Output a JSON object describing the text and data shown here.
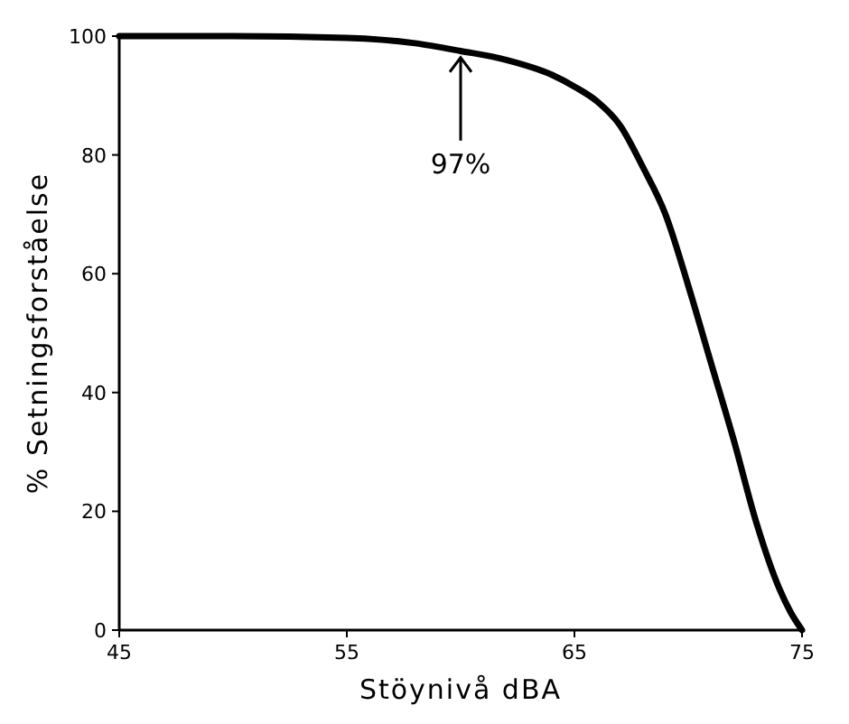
{
  "chart_data": {
    "type": "line",
    "xlabel": "Stöynivå dBA",
    "ylabel": "% Setningsforståelse",
    "x": [
      45,
      50,
      55,
      58,
      60,
      62,
      64,
      65,
      66,
      67,
      68,
      69,
      70,
      71,
      72,
      73,
      74,
      74.5,
      75
    ],
    "series": [
      {
        "color": "#000000",
        "values": [
          100,
          100,
          99.7,
          98.8,
          97.5,
          96,
          93.5,
          91.5,
          89,
          85,
          78,
          70,
          58,
          45,
          32,
          18,
          7,
          3,
          0
        ]
      }
    ],
    "xlim": [
      45,
      75
    ],
    "xticks": [
      45,
      55,
      65,
      75
    ],
    "ylim": [
      0,
      100
    ],
    "yticks": [
      0,
      20,
      40,
      60,
      80,
      100
    ],
    "grid": false,
    "marker": "none",
    "line_style": "solid",
    "annotations": [
      {
        "text": "97%",
        "x": 60,
        "y": 97
      }
    ]
  }
}
